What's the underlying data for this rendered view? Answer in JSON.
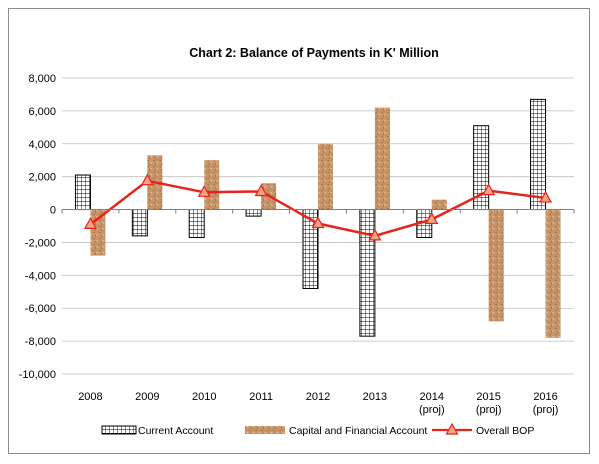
{
  "chart_data": {
    "type": "bar",
    "title": "Chart 2: Balance of Payments in K' Million",
    "categories": [
      [
        "2008"
      ],
      [
        "2009"
      ],
      [
        "2010"
      ],
      [
        "2011"
      ],
      [
        "2012"
      ],
      [
        "2013"
      ],
      [
        "2014",
        "(proj)"
      ],
      [
        "2015",
        "(proj)"
      ],
      [
        "2016",
        "(proj)"
      ]
    ],
    "ylim": [
      -10000,
      8000
    ],
    "yticks": [
      -10000,
      -8000,
      -6000,
      -4000,
      -2000,
      0,
      2000,
      4000,
      6000,
      8000
    ],
    "ytick_labels": [
      "-10,000",
      "-8,000",
      "-6,000",
      "-4,000",
      "-2,000",
      "0",
      "2,000",
      "4,000",
      "6,000",
      "8,000"
    ],
    "grid": true,
    "legend_position": "bottom",
    "series": [
      {
        "name": "Current Account",
        "type": "bar",
        "pattern": "grid",
        "color": "#000000",
        "values": [
          2100,
          -1600,
          -1700,
          -400,
          -4800,
          -7700,
          -1700,
          5100,
          6700
        ]
      },
      {
        "name": "Capital and Financial Account",
        "type": "bar",
        "pattern": "cork",
        "color": "#c9966a",
        "values": [
          -2800,
          3300,
          3000,
          1600,
          4000,
          6200,
          600,
          -6800,
          -7800
        ]
      },
      {
        "name": "Overall BOP",
        "type": "line",
        "marker": "triangle",
        "color": "#e8231b",
        "values": [
          -900,
          1750,
          1050,
          1100,
          -850,
          -1600,
          -600,
          1150,
          700
        ]
      }
    ]
  }
}
